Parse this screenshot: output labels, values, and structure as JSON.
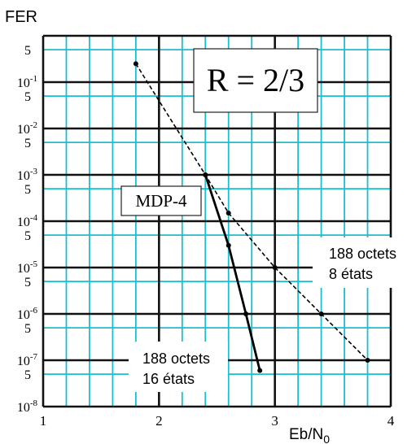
{
  "chart_data": {
    "type": "line",
    "ylabel": "FER",
    "xlabel_main": "Eb/N",
    "xlabel_sub": "0",
    "x_ticks": [
      "1",
      "2",
      "3",
      "4"
    ],
    "y_decade_labels": [
      {
        "base": "10",
        "exp": "-1"
      },
      {
        "base": "10",
        "exp": "-2"
      },
      {
        "base": "10",
        "exp": "-3"
      },
      {
        "base": "10",
        "exp": "-4"
      },
      {
        "base": "10",
        "exp": "-5"
      },
      {
        "base": "10",
        "exp": "-6"
      },
      {
        "base": "10",
        "exp": "-7"
      },
      {
        "base": "10",
        "exp": "-8"
      }
    ],
    "y_five_label": "5",
    "xlim": [
      1,
      4
    ],
    "ylim": [
      1e-08,
      1
    ],
    "yscale": "log",
    "grid": true,
    "rate_label": "R = 2/3",
    "modulation_label": "MDP-4",
    "series": [
      {
        "label_lines": [
          "188 octets",
          "8 états"
        ],
        "style": "dashed",
        "points": [
          [
            1.8,
            0.25
          ],
          [
            2.4,
            0.001
          ],
          [
            2.6,
            0.00015
          ],
          [
            3.0,
            1e-05
          ],
          [
            3.4,
            1e-06
          ],
          [
            3.8,
            1e-07
          ]
        ]
      },
      {
        "label_lines": [
          "188 octets",
          "16 états"
        ],
        "style": "solid",
        "points": [
          [
            2.4,
            0.001
          ],
          [
            2.6,
            3e-05
          ],
          [
            2.75,
            1e-06
          ],
          [
            2.87,
            6e-08
          ]
        ]
      }
    ],
    "colors": {
      "minor_grid": "#17c0d0",
      "major_grid": "#111111",
      "series": "#000000"
    }
  }
}
